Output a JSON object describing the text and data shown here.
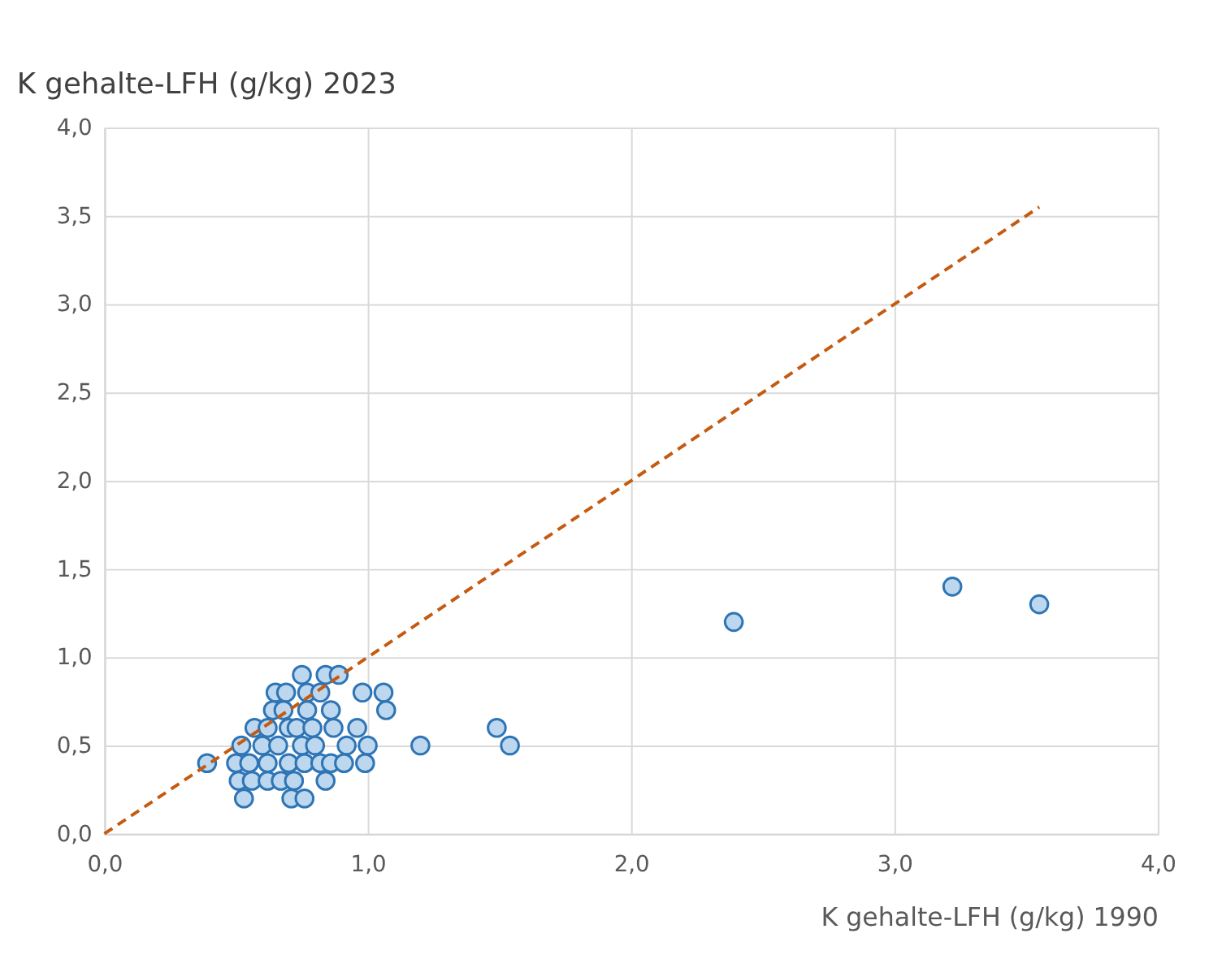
{
  "chart_data": {
    "type": "scatter",
    "xlabel": "K gehalte-LFH (g/kg) 1990",
    "ylabel": "K gehalte-LFH (g/kg) 2023",
    "xlim": [
      0,
      4
    ],
    "ylim": [
      0,
      4
    ],
    "xticks": [
      {
        "value": 0,
        "label": "0,0"
      },
      {
        "value": 1,
        "label": "1,0"
      },
      {
        "value": 2,
        "label": "2,0"
      },
      {
        "value": 3,
        "label": "3,0"
      },
      {
        "value": 4,
        "label": "4,0"
      }
    ],
    "yticks": [
      {
        "value": 0,
        "label": "0,0"
      },
      {
        "value": 0.5,
        "label": "0,5"
      },
      {
        "value": 1,
        "label": "1,0"
      },
      {
        "value": 1.5,
        "label": "1,5"
      },
      {
        "value": 2,
        "label": "2,0"
      },
      {
        "value": 2.5,
        "label": "2,5"
      },
      {
        "value": 3,
        "label": "3,0"
      },
      {
        "value": 3.5,
        "label": "3,5"
      },
      {
        "value": 4,
        "label": "4,0"
      }
    ],
    "grid": true,
    "series": [
      {
        "marker": "circle",
        "color": "#bdd7ee",
        "x": [
          0.75,
          0.84,
          0.89,
          0.65,
          0.69,
          0.77,
          0.82,
          0.98,
          1.06,
          0.64,
          0.68,
          0.77,
          0.86,
          1.07,
          0.57,
          0.62,
          0.7,
          0.73,
          0.79,
          0.87,
          0.96,
          0.52,
          0.6,
          0.66,
          0.75,
          0.8,
          0.92,
          1.0,
          1.2,
          0.39,
          0.5,
          0.55,
          0.62,
          0.7,
          0.76,
          0.82,
          0.86,
          0.91,
          0.99,
          0.51,
          0.56,
          0.62,
          0.67,
          0.72,
          0.84,
          0.53,
          0.71,
          0.76,
          1.49,
          1.54,
          2.39,
          3.22,
          3.55
        ],
        "values": [
          0.9,
          0.9,
          0.9,
          0.8,
          0.8,
          0.8,
          0.8,
          0.8,
          0.8,
          0.7,
          0.7,
          0.7,
          0.7,
          0.7,
          0.6,
          0.6,
          0.6,
          0.6,
          0.6,
          0.6,
          0.6,
          0.5,
          0.5,
          0.5,
          0.5,
          0.5,
          0.5,
          0.5,
          0.5,
          0.4,
          0.4,
          0.4,
          0.4,
          0.4,
          0.4,
          0.4,
          0.4,
          0.4,
          0.4,
          0.3,
          0.3,
          0.3,
          0.3,
          0.3,
          0.3,
          0.2,
          0.2,
          0.2,
          0.6,
          0.5,
          1.2,
          1.4,
          1.3
        ]
      },
      {
        "type": "line",
        "marker": "none",
        "color": "#c55a11",
        "line_style": "dashed",
        "x": [
          0,
          3.55
        ],
        "values": [
          0,
          3.55
        ]
      }
    ]
  }
}
